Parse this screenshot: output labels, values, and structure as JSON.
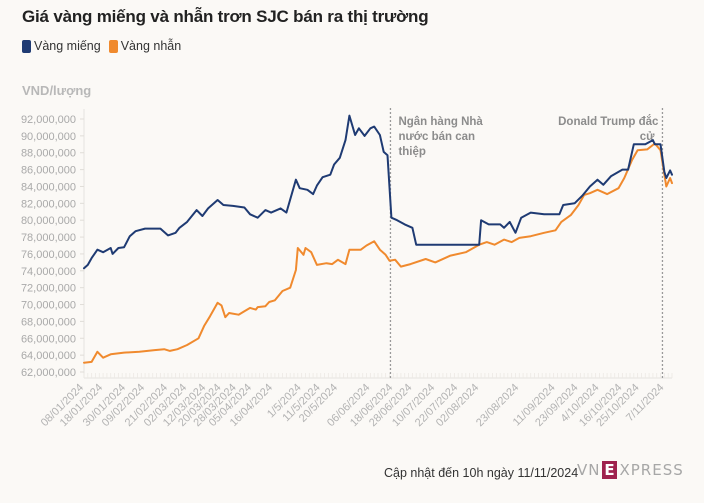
{
  "title": "Giá vàng miếng và nhẫn trơn SJC bán ra thị trường",
  "legend": [
    {
      "label": "Vàng miếng",
      "color": "#1f3b73"
    },
    {
      "label": "Vàng nhẫn",
      "color": "#f08a2e"
    }
  ],
  "unit_label": "VND/lượng",
  "footer": "Cập nhật đến 10h ngày 11/11/2024",
  "logo": {
    "left": "VN",
    "mid": "E",
    "right": "XPRESS"
  },
  "chart_data": {
    "type": "line",
    "title": "Giá vàng miếng và nhẫn trơn SJC bán ra thị trường",
    "ylabel": "VND/lượng",
    "xlabel": "",
    "ylim": [
      62000000,
      92000000
    ],
    "yticks": [
      62000000,
      64000000,
      66000000,
      68000000,
      70000000,
      72000000,
      74000000,
      76000000,
      78000000,
      80000000,
      82000000,
      84000000,
      86000000,
      88000000,
      90000000,
      92000000
    ],
    "ytick_labels": [
      "62,000,000",
      "64,000,000",
      "66,000,000",
      "68,000,000",
      "70,000,000",
      "72,000,000",
      "74,000,000",
      "76,000,000",
      "78,000,000",
      "80,000,000",
      "82,000,000",
      "84,000,000",
      "86,000,000",
      "88,000,000",
      "90,000,000",
      "92,000,000"
    ],
    "x_unit": "days since 08/01/2024",
    "xlim": [
      0,
      308
    ],
    "xticks": [
      {
        "label": "08/01/2024",
        "day": 0
      },
      {
        "label": "18/01/2024",
        "day": 10
      },
      {
        "label": "30/01/2024",
        "day": 22
      },
      {
        "label": "09/02/2024",
        "day": 32
      },
      {
        "label": "21/02/2024",
        "day": 44
      },
      {
        "label": "02/03/2024",
        "day": 54
      },
      {
        "label": "12/03/2024",
        "day": 64
      },
      {
        "label": "20/03/2024",
        "day": 72
      },
      {
        "label": "28/03/2024",
        "day": 80
      },
      {
        "label": "05/04/2024",
        "day": 88
      },
      {
        "label": "16/04/2024",
        "day": 99
      },
      {
        "label": "1/5/2024",
        "day": 114
      },
      {
        "label": "11/5/2024",
        "day": 124
      },
      {
        "label": "20/5/2024",
        "day": 133
      },
      {
        "label": "06/06/2024",
        "day": 150
      },
      {
        "label": "18/06/2024",
        "day": 162
      },
      {
        "label": "28/06/2024",
        "day": 172
      },
      {
        "label": "10/07/2024",
        "day": 184
      },
      {
        "label": "22/07/2024",
        "day": 196
      },
      {
        "label": "02/08/2024",
        "day": 207
      },
      {
        "label": "23/08/2024",
        "day": 228
      },
      {
        "label": "11/09/2024",
        "day": 247
      },
      {
        "label": "23/09/2024",
        "day": 259
      },
      {
        "label": "4/10/2024",
        "day": 270
      },
      {
        "label": "16/10/2024",
        "day": 282
      },
      {
        "label": "25/10/2024",
        "day": 291
      },
      {
        "label": "7/11/2024",
        "day": 304
      }
    ],
    "grid": false,
    "legend_position": "top-left",
    "series": [
      {
        "name": "Vàng miếng",
        "color": "#1f3b73",
        "points": [
          [
            0,
            74.3
          ],
          [
            2,
            74.7
          ],
          [
            4,
            75.5
          ],
          [
            7,
            76.5
          ],
          [
            10,
            76.2
          ],
          [
            14,
            76.7
          ],
          [
            15,
            76.0
          ],
          [
            18,
            76.7
          ],
          [
            21,
            76.8
          ],
          [
            24,
            78.1
          ],
          [
            27,
            78.7
          ],
          [
            32,
            79.0
          ],
          [
            40,
            79.0
          ],
          [
            44,
            78.2
          ],
          [
            48,
            78.5
          ],
          [
            50,
            79.1
          ],
          [
            54,
            79.8
          ],
          [
            59,
            81.2
          ],
          [
            62,
            80.5
          ],
          [
            65,
            81.4
          ],
          [
            70,
            82.4
          ],
          [
            73,
            81.8
          ],
          [
            78,
            81.7
          ],
          [
            84,
            81.5
          ],
          [
            87,
            80.7
          ],
          [
            91,
            80.3
          ],
          [
            95,
            81.2
          ],
          [
            98,
            80.9
          ],
          [
            103,
            81.4
          ],
          [
            106,
            80.9
          ],
          [
            111,
            84.8
          ],
          [
            113,
            83.8
          ],
          [
            117,
            83.6
          ],
          [
            120,
            83.1
          ],
          [
            122,
            84.1
          ],
          [
            125,
            85.1
          ],
          [
            129,
            85.4
          ],
          [
            131,
            86.6
          ],
          [
            134,
            87.4
          ],
          [
            137,
            89.5
          ],
          [
            139,
            92.4
          ],
          [
            142,
            90.1
          ],
          [
            144,
            90.9
          ],
          [
            147,
            90.0
          ],
          [
            150,
            90.9
          ],
          [
            152,
            91.1
          ],
          [
            155,
            90.1
          ],
          [
            157,
            88.1
          ],
          [
            159,
            87.7
          ],
          [
            161,
            80.3
          ],
          [
            164,
            80.0
          ],
          [
            168,
            79.5
          ],
          [
            172,
            79.1
          ],
          [
            174,
            77.1
          ],
          [
            207,
            77.1
          ],
          [
            208,
            80.0
          ],
          [
            212,
            79.5
          ],
          [
            218,
            79.5
          ],
          [
            220,
            79.1
          ],
          [
            223,
            79.8
          ],
          [
            226,
            78.5
          ],
          [
            229,
            80.3
          ],
          [
            234,
            80.9
          ],
          [
            241,
            80.7
          ],
          [
            249,
            80.7
          ],
          [
            251,
            81.8
          ],
          [
            257,
            82.0
          ],
          [
            261,
            82.9
          ],
          [
            265,
            84.0
          ],
          [
            269,
            84.8
          ],
          [
            272,
            84.2
          ],
          [
            276,
            85.2
          ],
          [
            282,
            86.0
          ],
          [
            285,
            86.0
          ],
          [
            288,
            89.0
          ],
          [
            294,
            89.0
          ],
          [
            298,
            89.5
          ],
          [
            299,
            89.0
          ],
          [
            302,
            89.0
          ],
          [
            304,
            85.7
          ],
          [
            305,
            85.0
          ],
          [
            307,
            85.9
          ],
          [
            308,
            85.4
          ]
        ]
      },
      {
        "name": "Vàng nhẫn",
        "color": "#f08a2e",
        "points": [
          [
            0,
            63.1
          ],
          [
            4,
            63.2
          ],
          [
            7,
            64.4
          ],
          [
            10,
            63.7
          ],
          [
            14,
            64.1
          ],
          [
            21,
            64.3
          ],
          [
            29,
            64.4
          ],
          [
            37,
            64.6
          ],
          [
            42,
            64.7
          ],
          [
            45,
            64.5
          ],
          [
            49,
            64.7
          ],
          [
            54,
            65.2
          ],
          [
            60,
            66.0
          ],
          [
            63,
            67.5
          ],
          [
            66,
            68.6
          ],
          [
            70,
            70.2
          ],
          [
            72,
            69.9
          ],
          [
            74,
            68.5
          ],
          [
            76,
            69.0
          ],
          [
            81,
            68.8
          ],
          [
            84,
            69.2
          ],
          [
            87,
            69.6
          ],
          [
            90,
            69.4
          ],
          [
            91,
            69.7
          ],
          [
            95,
            69.8
          ],
          [
            97,
            70.3
          ],
          [
            100,
            70.5
          ],
          [
            104,
            71.6
          ],
          [
            108,
            72.0
          ],
          [
            111,
            74.1
          ],
          [
            112,
            76.7
          ],
          [
            115,
            75.9
          ],
          [
            116,
            76.7
          ],
          [
            119,
            76.2
          ],
          [
            122,
            74.7
          ],
          [
            127,
            74.9
          ],
          [
            130,
            74.8
          ],
          [
            133,
            75.3
          ],
          [
            137,
            74.8
          ],
          [
            139,
            76.5
          ],
          [
            145,
            76.5
          ],
          [
            148,
            77.0
          ],
          [
            152,
            77.5
          ],
          [
            155,
            76.5
          ],
          [
            158,
            75.9
          ],
          [
            160,
            75.2
          ],
          [
            163,
            75.3
          ],
          [
            166,
            74.5
          ],
          [
            171,
            74.8
          ],
          [
            179,
            75.4
          ],
          [
            184,
            75.0
          ],
          [
            192,
            75.8
          ],
          [
            200,
            76.2
          ],
          [
            207,
            77.1
          ],
          [
            211,
            77.4
          ],
          [
            215,
            77.1
          ],
          [
            220,
            77.7
          ],
          [
            224,
            77.4
          ],
          [
            228,
            77.9
          ],
          [
            234,
            78.1
          ],
          [
            241,
            78.5
          ],
          [
            247,
            78.8
          ],
          [
            250,
            79.8
          ],
          [
            255,
            80.6
          ],
          [
            259,
            81.8
          ],
          [
            262,
            83.0
          ],
          [
            265,
            83.2
          ],
          [
            269,
            83.6
          ],
          [
            274,
            83.1
          ],
          [
            280,
            83.8
          ],
          [
            283,
            85.0
          ],
          [
            287,
            87.1
          ],
          [
            290,
            88.3
          ],
          [
            295,
            88.4
          ],
          [
            299,
            89.1
          ],
          [
            302,
            88.3
          ],
          [
            304,
            85.4
          ],
          [
            305,
            84.0
          ],
          [
            307,
            85.0
          ],
          [
            308,
            84.4
          ]
        ]
      }
    ],
    "value_unit": "million VND/lượng (points); axis labels in VND",
    "annotations": [
      {
        "text": "Ngân hàng Nhà nước bán can thiệp",
        "day": 160,
        "style": "dotted-vertical-line"
      },
      {
        "text": "Donald Trump đắc cử",
        "day": 303,
        "style": "dotted-vertical-line"
      }
    ]
  }
}
